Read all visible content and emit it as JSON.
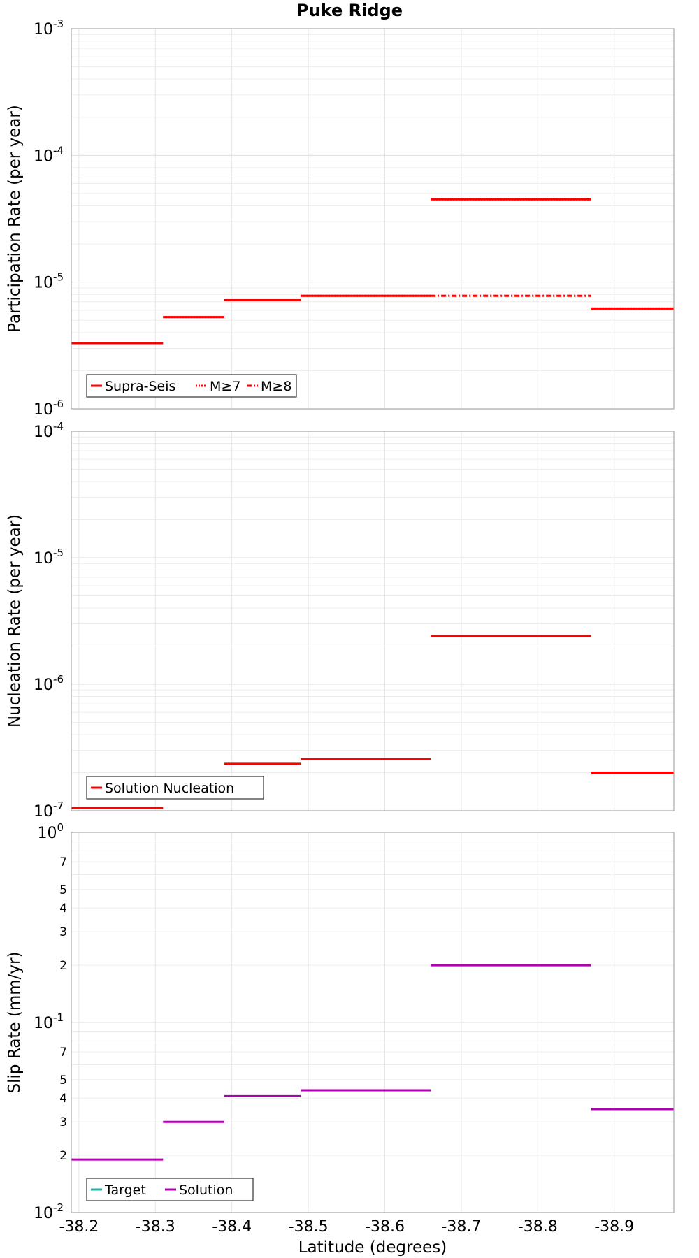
{
  "chart_data": {
    "type": "line",
    "title": "Puke Ridge",
    "xlabel": "Latitude (degrees)",
    "xlim": [
      -38.19,
      -38.978
    ],
    "x_ticks": [
      "-38.2",
      "-38.3",
      "-38.4",
      "-38.5",
      "-38.6",
      "-38.7",
      "-38.8",
      "-38.9"
    ],
    "x_tick_values": [
      -38.2,
      -38.3,
      -38.4,
      -38.5,
      -38.6,
      -38.7,
      -38.8,
      -38.9
    ],
    "panels": [
      {
        "ylabel": "Participation Rate (per year)",
        "yscale": "log",
        "ylim": [
          1e-06,
          0.001
        ],
        "y_ticks": [
          {
            "base": "10",
            "exp": "-6"
          },
          {
            "base": "10",
            "exp": "-5"
          },
          {
            "base": "10",
            "exp": "-4"
          },
          {
            "base": "10",
            "exp": "-3"
          }
        ],
        "legend": {
          "position": "bottom-left",
          "entries": [
            "Supra-Seis",
            "M≥7",
            "M≥8"
          ]
        },
        "series": [
          {
            "name": "Supra-Seis",
            "color": "#ff0000",
            "style": "solid",
            "segments": [
              {
                "x0": -38.19,
                "x1": -38.31,
                "y": 3.3e-06
              },
              {
                "x0": -38.31,
                "x1": -38.39,
                "y": 5.3e-06
              },
              {
                "x0": -38.39,
                "x1": -38.49,
                "y": 7.2e-06
              },
              {
                "x0": -38.49,
                "x1": -38.66,
                "y": 7.8e-06
              },
              {
                "x0": -38.66,
                "x1": -38.87,
                "y": 4.5e-05
              },
              {
                "x0": -38.87,
                "x1": -38.978,
                "y": 6.2e-06
              }
            ]
          },
          {
            "name": "M≥7",
            "color": "#ff0000",
            "style": "dotted",
            "segments": [
              {
                "x0": -38.31,
                "x1": -38.39,
                "y": 5.3e-06
              },
              {
                "x0": -38.39,
                "x1": -38.49,
                "y": 7.2e-06
              },
              {
                "x0": -38.49,
                "x1": -38.66,
                "y": 7.8e-06
              },
              {
                "x0": -38.66,
                "x1": -38.87,
                "y": 4.5e-05
              },
              {
                "x0": -38.87,
                "x1": -38.978,
                "y": 6.2e-06
              }
            ]
          },
          {
            "name": "M≥8",
            "color": "#ff0000",
            "style": "dashdot",
            "segments": [
              {
                "x0": -38.66,
                "x1": -38.87,
                "y": 7.8e-06
              }
            ]
          }
        ]
      },
      {
        "ylabel": "Nucleation Rate (per year)",
        "yscale": "log",
        "ylim": [
          1e-07,
          0.0001
        ],
        "y_ticks": [
          {
            "base": "10",
            "exp": "-7"
          },
          {
            "base": "10",
            "exp": "-6"
          },
          {
            "base": "10",
            "exp": "-5"
          },
          {
            "base": "10",
            "exp": "-4"
          }
        ],
        "legend": {
          "position": "bottom-left",
          "entries": [
            "Solution Nucleation"
          ]
        },
        "series": [
          {
            "name": "Solution Nucleation",
            "color": "#ff0000",
            "style": "solid",
            "segments": [
              {
                "x0": -38.19,
                "x1": -38.31,
                "y": 1.05e-07
              },
              {
                "x0": -38.31,
                "x1": -38.39,
                "y": 1.7e-07
              },
              {
                "x0": -38.39,
                "x1": -38.49,
                "y": 2.35e-07
              },
              {
                "x0": -38.49,
                "x1": -38.66,
                "y": 2.55e-07
              },
              {
                "x0": -38.66,
                "x1": -38.87,
                "y": 2.4e-06
              },
              {
                "x0": -38.87,
                "x1": -38.978,
                "y": 2e-07
              }
            ]
          }
        ]
      },
      {
        "ylabel": "Slip Rate (mm/yr)",
        "yscale": "log",
        "ylim": [
          0.01,
          1
        ],
        "y_ticks": [
          {
            "base": "10",
            "exp": "-2"
          },
          {
            "base": "10",
            "exp": "-1"
          },
          {
            "base": "10",
            "exp": "0"
          }
        ],
        "y_minor_labels": [
          "2",
          "3",
          "4",
          "5",
          "7"
        ],
        "legend": {
          "position": "bottom-left",
          "entries": [
            "Target",
            "Solution"
          ]
        },
        "series": [
          {
            "name": "Target",
            "color": "#20b2aa",
            "style": "solid",
            "segments": []
          },
          {
            "name": "Solution",
            "color": "#b000b0",
            "style": "solid",
            "segments": [
              {
                "x0": -38.19,
                "x1": -38.31,
                "y": 0.019
              },
              {
                "x0": -38.31,
                "x1": -38.39,
                "y": 0.03
              },
              {
                "x0": -38.39,
                "x1": -38.49,
                "y": 0.041
              },
              {
                "x0": -38.49,
                "x1": -38.66,
                "y": 0.044
              },
              {
                "x0": -38.66,
                "x1": -38.87,
                "y": 0.2
              },
              {
                "x0": -38.87,
                "x1": -38.978,
                "y": 0.035
              }
            ]
          }
        ]
      }
    ]
  }
}
